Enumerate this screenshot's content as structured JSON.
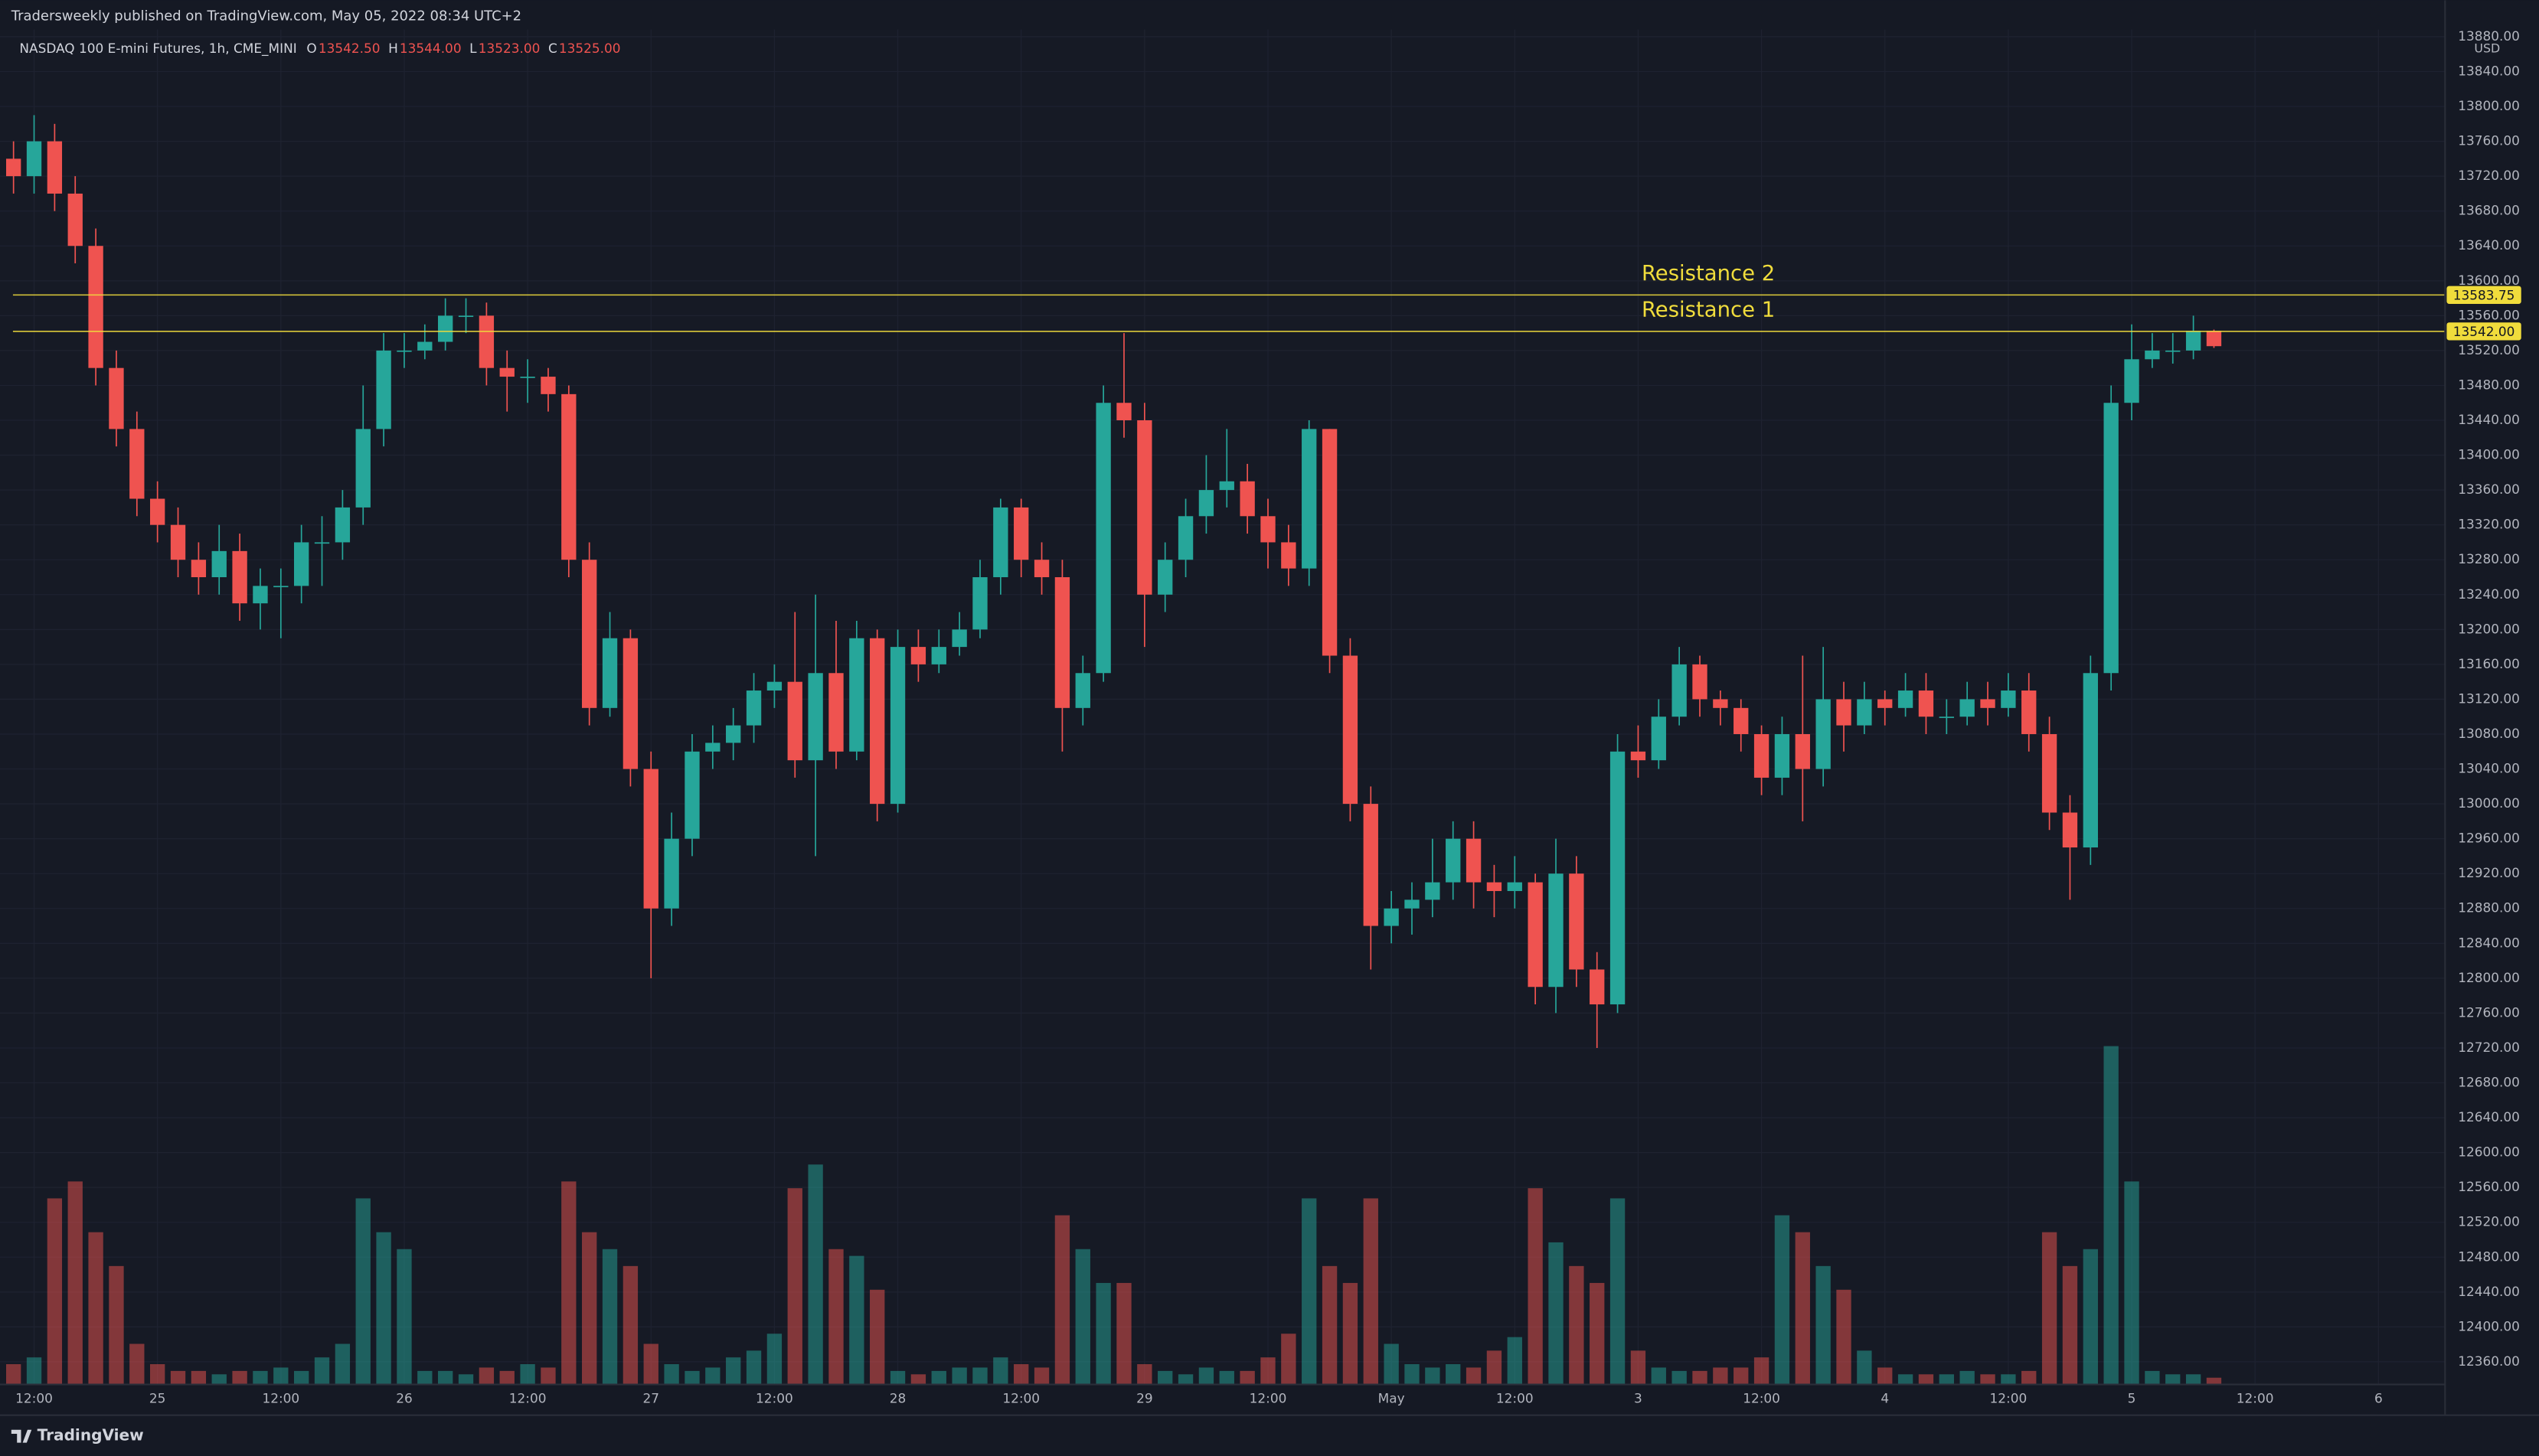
{
  "header": "Tradersweekly published on TradingView.com, May 05, 2022 08:34 UTC+2",
  "footer": "TradingView",
  "chart_data": {
    "type": "candlestick",
    "symbol": "NASDAQ 100 E-mini Futures, 1h, CME_MINI",
    "ohlc_legend": [
      {
        "key": "O",
        "value": 13542.5,
        "label": "13542.50"
      },
      {
        "key": "H",
        "value": 13544,
        "label": "13544.00"
      },
      {
        "key": "L",
        "value": 13523,
        "label": "13523.00"
      },
      {
        "key": "C",
        "value": 13525,
        "label": "13525.00"
      }
    ],
    "currency": "USD",
    "open": [
      13740,
      13720,
      13760,
      13700,
      13640,
      13500,
      13430,
      13350,
      13320,
      13280,
      13260,
      13290,
      13230,
      13250,
      13250,
      13300,
      13300,
      13340,
      13430,
      13520,
      13520,
      13530,
      13560,
      13560,
      13500,
      13490,
      13490,
      13470,
      13280,
      13110,
      13190,
      13040,
      12880,
      12960,
      13060,
      13070,
      13090,
      13130,
      13140,
      13050,
      13150,
      13060,
      13190,
      13000,
      13180,
      13160,
      13180,
      13200,
      13260,
      13340,
      13280,
      13260,
      13110,
      13150,
      13460,
      13440,
      13240,
      13280,
      13330,
      13360,
      13370,
      13330,
      13300,
      13270,
      13430,
      13170,
      13000,
      12860,
      12880,
      12890,
      12910,
      12960,
      12910,
      12900,
      12910,
      12790,
      12920,
      12810,
      12770,
      13060,
      13050,
      13100,
      13160,
      13120,
      13110,
      13080,
      13030,
      13080,
      13040,
      13120,
      13090,
      13120,
      13110,
      13130,
      13100,
      13100,
      13120,
      13110,
      13130,
      13080,
      12990,
      12950,
      13150,
      13460,
      13510,
      13520,
      13520,
      13542.5
    ],
    "high": [
      13760,
      13790,
      13780,
      13720,
      13660,
      13520,
      13450,
      13370,
      13340,
      13300,
      13320,
      13310,
      13270,
      13270,
      13320,
      13330,
      13360,
      13480,
      13540,
      13540,
      13550,
      13580,
      13580,
      13575,
      13520,
      13510,
      13500,
      13480,
      13300,
      13220,
      13200,
      13060,
      12990,
      13080,
      13090,
      13110,
      13150,
      13160,
      13220,
      13240,
      13210,
      13210,
      13200,
      13200,
      13200,
      13200,
      13220,
      13280,
      13350,
      13350,
      13300,
      13280,
      13170,
      13480,
      13540,
      13460,
      13300,
      13350,
      13400,
      13430,
      13390,
      13350,
      13320,
      13440,
      13430,
      13190,
      13020,
      12900,
      12910,
      12960,
      12980,
      12980,
      12930,
      12940,
      12920,
      12960,
      12940,
      12830,
      13080,
      13090,
      13120,
      13180,
      13170,
      13130,
      13120,
      13090,
      13100,
      13170,
      13180,
      13140,
      13140,
      13130,
      13150,
      13150,
      13120,
      13140,
      13140,
      13150,
      13150,
      13100,
      13010,
      13170,
      13480,
      13550,
      13540,
      13540,
      13560,
      13544
    ],
    "low": [
      13700,
      13700,
      13680,
      13620,
      13480,
      13410,
      13330,
      13300,
      13260,
      13240,
      13240,
      13210,
      13200,
      13190,
      13230,
      13250,
      13280,
      13320,
      13410,
      13500,
      13510,
      13520,
      13540,
      13480,
      13450,
      13460,
      13450,
      13260,
      13090,
      13100,
      13020,
      12800,
      12860,
      12940,
      13040,
      13050,
      13070,
      13110,
      13030,
      12940,
      13040,
      13050,
      12980,
      12990,
      13140,
      13150,
      13170,
      13190,
      13240,
      13260,
      13240,
      13060,
      13090,
      13140,
      13420,
      13180,
      13220,
      13260,
      13310,
      13340,
      13310,
      13270,
      13250,
      13250,
      13150,
      12980,
      12810,
      12840,
      12850,
      12870,
      12890,
      12880,
      12870,
      12880,
      12770,
      12760,
      12790,
      12720,
      12760,
      13030,
      13040,
      13090,
      13100,
      13090,
      13060,
      13010,
      13010,
      12980,
      13020,
      13060,
      13080,
      13090,
      13100,
      13080,
      13080,
      13090,
      13090,
      13100,
      13060,
      12970,
      12890,
      12930,
      13130,
      13440,
      13500,
      13505,
      13510,
      13523
    ],
    "close": [
      13720,
      13760,
      13700,
      13640,
      13500,
      13430,
      13350,
      13320,
      13280,
      13260,
      13290,
      13230,
      13250,
      13250,
      13300,
      13300,
      13340,
      13430,
      13520,
      13520,
      13530,
      13560,
      13560,
      13500,
      13490,
      13490,
      13470,
      13280,
      13110,
      13190,
      13040,
      12880,
      12960,
      13060,
      13070,
      13090,
      13130,
      13140,
      13050,
      13150,
      13060,
      13190,
      13000,
      13180,
      13160,
      13180,
      13200,
      13260,
      13340,
      13280,
      13260,
      13110,
      13150,
      13460,
      13440,
      13240,
      13280,
      13330,
      13360,
      13370,
      13330,
      13300,
      13270,
      13430,
      13170,
      13000,
      12860,
      12880,
      12890,
      12910,
      12960,
      12910,
      12900,
      12910,
      12790,
      12920,
      12810,
      12770,
      13060,
      13050,
      13100,
      13160,
      13120,
      13110,
      13080,
      13030,
      13080,
      13040,
      13120,
      13090,
      13120,
      13110,
      13130,
      13100,
      13100,
      13120,
      13110,
      13130,
      13080,
      12990,
      12950,
      13150,
      13460,
      13510,
      13520,
      13520,
      13542.5,
      13525
    ],
    "volume": [
      6,
      8,
      55,
      60,
      45,
      35,
      12,
      6,
      4,
      4,
      3,
      4,
      4,
      5,
      4,
      8,
      12,
      55,
      45,
      40,
      4,
      4,
      3,
      5,
      4,
      6,
      5,
      60,
      45,
      40,
      35,
      12,
      6,
      4,
      5,
      8,
      10,
      15,
      58,
      65,
      40,
      38,
      28,
      4,
      3,
      4,
      5,
      5,
      8,
      6,
      5,
      50,
      40,
      30,
      30,
      6,
      4,
      3,
      5,
      4,
      4,
      8,
      15,
      55,
      35,
      30,
      55,
      12,
      6,
      5,
      6,
      5,
      10,
      14,
      58,
      42,
      35,
      30,
      55,
      10,
      5,
      4,
      4,
      5,
      5,
      8,
      50,
      45,
      35,
      28,
      10,
      5,
      3,
      3,
      3,
      4,
      3,
      3,
      4,
      45,
      35,
      40,
      100,
      60,
      4,
      3,
      3,
      2
    ],
    "up_color": "#26a69a",
    "down_color": "#ef5350",
    "xlim": [
      -0.5,
      118.24
    ],
    "xticks": [
      {
        "value": 1,
        "label": "12:00"
      },
      {
        "value": 7,
        "label": "25"
      },
      {
        "value": 13,
        "label": "12:00"
      },
      {
        "value": 19,
        "label": "26"
      },
      {
        "value": 25,
        "label": "12:00"
      },
      {
        "value": 31,
        "label": "27"
      },
      {
        "value": 37,
        "label": "12:00"
      },
      {
        "value": 43,
        "label": "28"
      },
      {
        "value": 49,
        "label": "12:00"
      },
      {
        "value": 55,
        "label": "29"
      },
      {
        "value": 61,
        "label": "12:00"
      },
      {
        "value": 67,
        "label": "May"
      },
      {
        "value": 73,
        "label": "12:00"
      },
      {
        "value": 79,
        "label": "3"
      },
      {
        "value": 85,
        "label": "12:00"
      },
      {
        "value": 91,
        "label": "4"
      },
      {
        "value": 97,
        "label": "12:00"
      },
      {
        "value": 103,
        "label": "5"
      },
      {
        "value": 109,
        "label": "12:00"
      },
      {
        "value": 115,
        "label": "6"
      }
    ],
    "ylim": [
      12334,
      13882
    ],
    "yticks": [
      {
        "value": 12360,
        "label": "12360.00"
      },
      {
        "value": 12400,
        "label": "12400.00"
      },
      {
        "value": 12440,
        "label": "12440.00"
      },
      {
        "value": 12480,
        "label": "12480.00"
      },
      {
        "value": 12520,
        "label": "12520.00"
      },
      {
        "value": 12560,
        "label": "12560.00"
      },
      {
        "value": 12600,
        "label": "12600.00"
      },
      {
        "value": 12640,
        "label": "12640.00"
      },
      {
        "value": 12680,
        "label": "12680.00"
      },
      {
        "value": 12720,
        "label": "12720.00"
      },
      {
        "value": 12760,
        "label": "12760.00"
      },
      {
        "value": 12800,
        "label": "12800.00"
      },
      {
        "value": 12840,
        "label": "12840.00"
      },
      {
        "value": 12880,
        "label": "12880.00"
      },
      {
        "value": 12920,
        "label": "12920.00"
      },
      {
        "value": 12960,
        "label": "12960.00"
      },
      {
        "value": 13000,
        "label": "13000.00"
      },
      {
        "value": 13040,
        "label": "13040.00"
      },
      {
        "value": 13080,
        "label": "13080.00"
      },
      {
        "value": 13120,
        "label": "13120.00"
      },
      {
        "value": 13160,
        "label": "13160.00"
      },
      {
        "value": 13200,
        "label": "13200.00"
      },
      {
        "value": 13240,
        "label": "13240.00"
      },
      {
        "value": 13280,
        "label": "13280.00"
      },
      {
        "value": 13320,
        "label": "13320.00"
      },
      {
        "value": 13360,
        "label": "13360.00"
      },
      {
        "value": 13400,
        "label": "13400.00"
      },
      {
        "value": 13440,
        "label": "13440.00"
      },
      {
        "value": 13480,
        "label": "13480.00"
      },
      {
        "value": 13520,
        "label": "13520.00"
      },
      {
        "value": 13560,
        "label": "13560.00"
      },
      {
        "value": 13600,
        "label": "13600.00"
      },
      {
        "value": 13640,
        "label": "13640.00"
      },
      {
        "value": 13680,
        "label": "13680.00"
      },
      {
        "value": 13720,
        "label": "13720.00"
      },
      {
        "value": 13760,
        "label": "13760.00"
      },
      {
        "value": 13800,
        "label": "13800.00"
      },
      {
        "value": 13840,
        "label": "13840.00"
      },
      {
        "value": 13880,
        "label": "13880.00"
      }
    ],
    "vlim": [
      0,
      100
    ],
    "grid": true,
    "levels": [
      {
        "name": "Resistance 2",
        "value": 13583.75
      },
      {
        "name": "Resistance 1",
        "value": 13542,
        "value_label": "13542.00"
      }
    ],
    "level_color": "#f0dc3c"
  }
}
